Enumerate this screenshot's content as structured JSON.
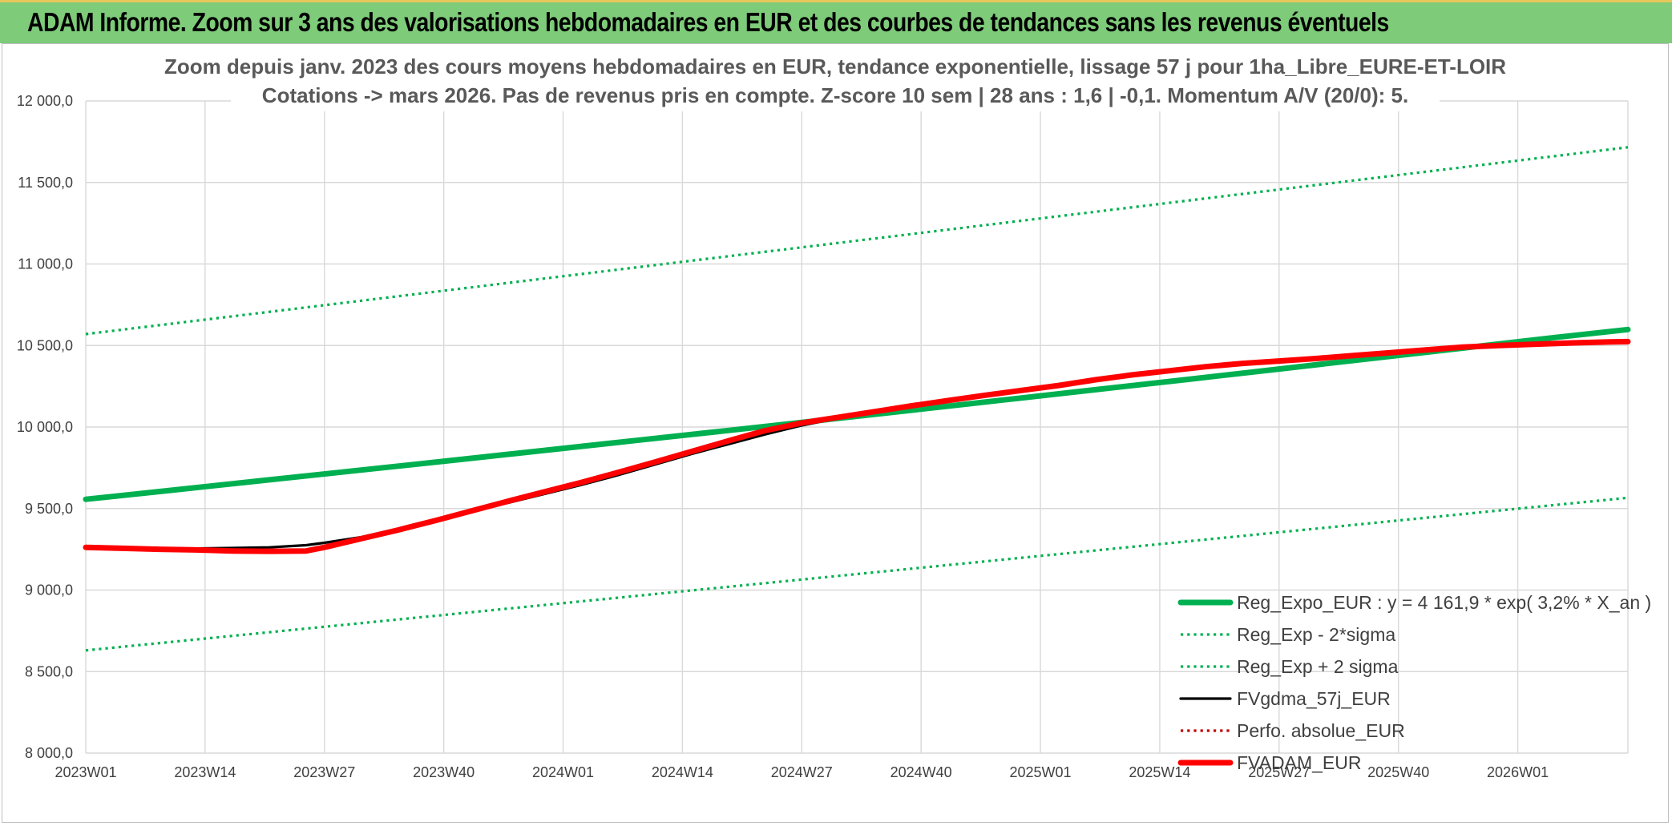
{
  "banner": {
    "title": "ADAM Informe. Zoom sur 3 ans des valorisations hebdomadaires en EUR et des courbes de tendances sans les revenus éventuels"
  },
  "colors": {
    "banner": "#7ecb79",
    "green": "#00b050",
    "black": "#000000",
    "red": "#ff0000",
    "dotred": "#c00000"
  },
  "chart_data": {
    "type": "line",
    "title": [
      "Zoom depuis janv. 2023 des cours moyens hebdomadaires en EUR, tendance exponentielle, lissage 57 j pour 1ha_Libre_EURE-ET-LOIR",
      "Cotations -> mars 2026. Pas de revenus pris en compte. Z-score 10 sem | 28 ans : 1,6 | -0,1. Momentum A/V (20/0): 5."
    ],
    "xlabel": "",
    "ylabel": "",
    "x_categories": [
      "2023W01",
      "2023W14",
      "2023W27",
      "2023W40",
      "2024W01",
      "2024W14",
      "2024W27",
      "2024W40",
      "2025W01",
      "2025W14",
      "2025W27",
      "2025W40",
      "2026W01"
    ],
    "x_range_weeks": [
      0,
      168
    ],
    "ylim": [
      8000,
      12000
    ],
    "yticks": [
      8000,
      8500,
      9000,
      9500,
      10000,
      10500,
      11000,
      11500,
      12000
    ],
    "ytick_labels": [
      "8 000,0",
      "8 500,0",
      "9 000,0",
      "9 500,0",
      "10 000,0",
      "10 500,0",
      "11 000,0",
      "11 500,0",
      "12 000,0"
    ],
    "grid": true,
    "legend_position": "bottom-right",
    "series": [
      {
        "name": "Reg_Expo_EUR : y = 4 161,9 * exp( 3,2% *  X_an )",
        "style": "solid-thick",
        "color": "#00b050",
        "x": [
          0,
          10,
          20,
          30,
          40,
          50,
          60,
          70,
          80,
          90,
          100,
          110,
          120,
          130,
          140,
          150,
          160,
          168
        ],
        "y": [
          9557,
          9616,
          9676,
          9736,
          9796,
          9857,
          9918,
          9979,
          10041,
          10103,
          10166,
          10229,
          10292,
          10356,
          10420,
          10484,
          10549,
          10598
        ]
      },
      {
        "name": "Reg_Exp - 2*sigma",
        "style": "dotted",
        "color": "#00b050",
        "x": [
          0,
          168
        ],
        "y": [
          8630,
          9566
        ]
      },
      {
        "name": "Reg_Exp + 2 sigma",
        "style": "dotted",
        "color": "#00b050",
        "x": [
          0,
          168
        ],
        "y": [
          10570,
          11716
        ]
      },
      {
        "name": "FVgdma_57j_EUR",
        "style": "solid",
        "color": "#000000",
        "x": [
          0,
          4,
          8,
          12,
          16,
          20,
          24,
          26,
          30,
          34,
          38,
          42,
          46,
          50,
          54,
          58,
          62,
          66,
          70,
          74,
          78,
          82,
          86,
          90,
          94,
          98,
          102,
          106,
          110,
          114,
          118,
          122,
          126,
          130,
          134,
          138,
          142,
          146,
          150,
          154,
          158,
          162,
          166,
          168
        ],
        "y": [
          9262,
          9258,
          9256,
          9255,
          9258,
          9262,
          9275,
          9290,
          9325,
          9375,
          9425,
          9480,
          9535,
          9590,
          9645,
          9705,
          9770,
          9835,
          9895,
          9955,
          10010,
          10055,
          10095,
          10130,
          10165,
          10195,
          10225,
          10255,
          10285,
          10315,
          10340,
          10365,
          10385,
          10405,
          10422,
          10440,
          10460,
          10478,
          10493,
          10503,
          10510,
          10515,
          10519,
          10521
        ]
      },
      {
        "name": "Perfo. absolue_EUR",
        "style": "dotted",
        "color": "#c00000",
        "x": [],
        "y": []
      },
      {
        "name": "FVADAM_EUR",
        "style": "solid-thick",
        "color": "#ff0000",
        "x": [
          0,
          4,
          8,
          12,
          16,
          20,
          24,
          26,
          30,
          34,
          38,
          42,
          46,
          50,
          54,
          58,
          62,
          66,
          70,
          74,
          78,
          82,
          86,
          90,
          94,
          98,
          102,
          106,
          110,
          114,
          118,
          122,
          126,
          130,
          134,
          138,
          142,
          146,
          150,
          154,
          158,
          162,
          166,
          168
        ],
        "y": [
          9262,
          9256,
          9250,
          9246,
          9240,
          9238,
          9240,
          9262,
          9315,
          9368,
          9425,
          9485,
          9545,
          9603,
          9660,
          9722,
          9785,
          9850,
          9915,
          9978,
          10025,
          10060,
          10095,
          10130,
          10163,
          10195,
          10225,
          10255,
          10290,
          10320,
          10345,
          10370,
          10390,
          10405,
          10420,
          10438,
          10455,
          10473,
          10490,
          10500,
          10508,
          10516,
          10522,
          10524
        ]
      }
    ]
  }
}
